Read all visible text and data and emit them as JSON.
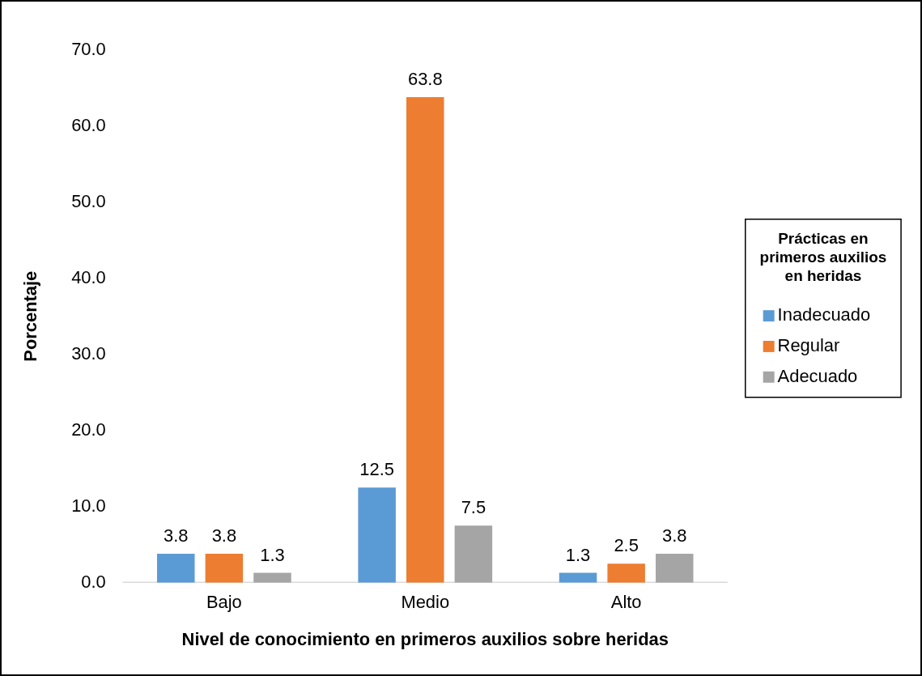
{
  "chart_data": {
    "type": "bar",
    "xlabel": "Nivel de conocimiento en primeros auxilios sobre heridas",
    "ylabel": "Porcentaje",
    "legend_title": "Prácticas en primeros auxilios en heridas",
    "categories": [
      "Bajo",
      "Medio",
      "Alto"
    ],
    "series": [
      {
        "name": "Inadecuado",
        "color": "#5b9bd5",
        "values": [
          3.8,
          12.5,
          1.3
        ]
      },
      {
        "name": "Regular",
        "color": "#ed7d31",
        "values": [
          3.8,
          63.8,
          2.5
        ]
      },
      {
        "name": "Adecuado",
        "color": "#a5a5a5",
        "values": [
          1.3,
          7.5,
          3.8
        ]
      }
    ],
    "ylim": [
      0,
      70
    ],
    "yticks": [
      {
        "value": 0,
        "label": "0.0"
      },
      {
        "value": 10,
        "label": "10.0"
      },
      {
        "value": 20,
        "label": "20.0"
      },
      {
        "value": 30,
        "label": "30.0"
      },
      {
        "value": 40,
        "label": "40.0"
      },
      {
        "value": 50,
        "label": "50.0"
      },
      {
        "value": 60,
        "label": "60.0"
      },
      {
        "value": 70,
        "label": "70.0"
      }
    ],
    "grid": false,
    "legend": "right",
    "data_labels": true
  }
}
